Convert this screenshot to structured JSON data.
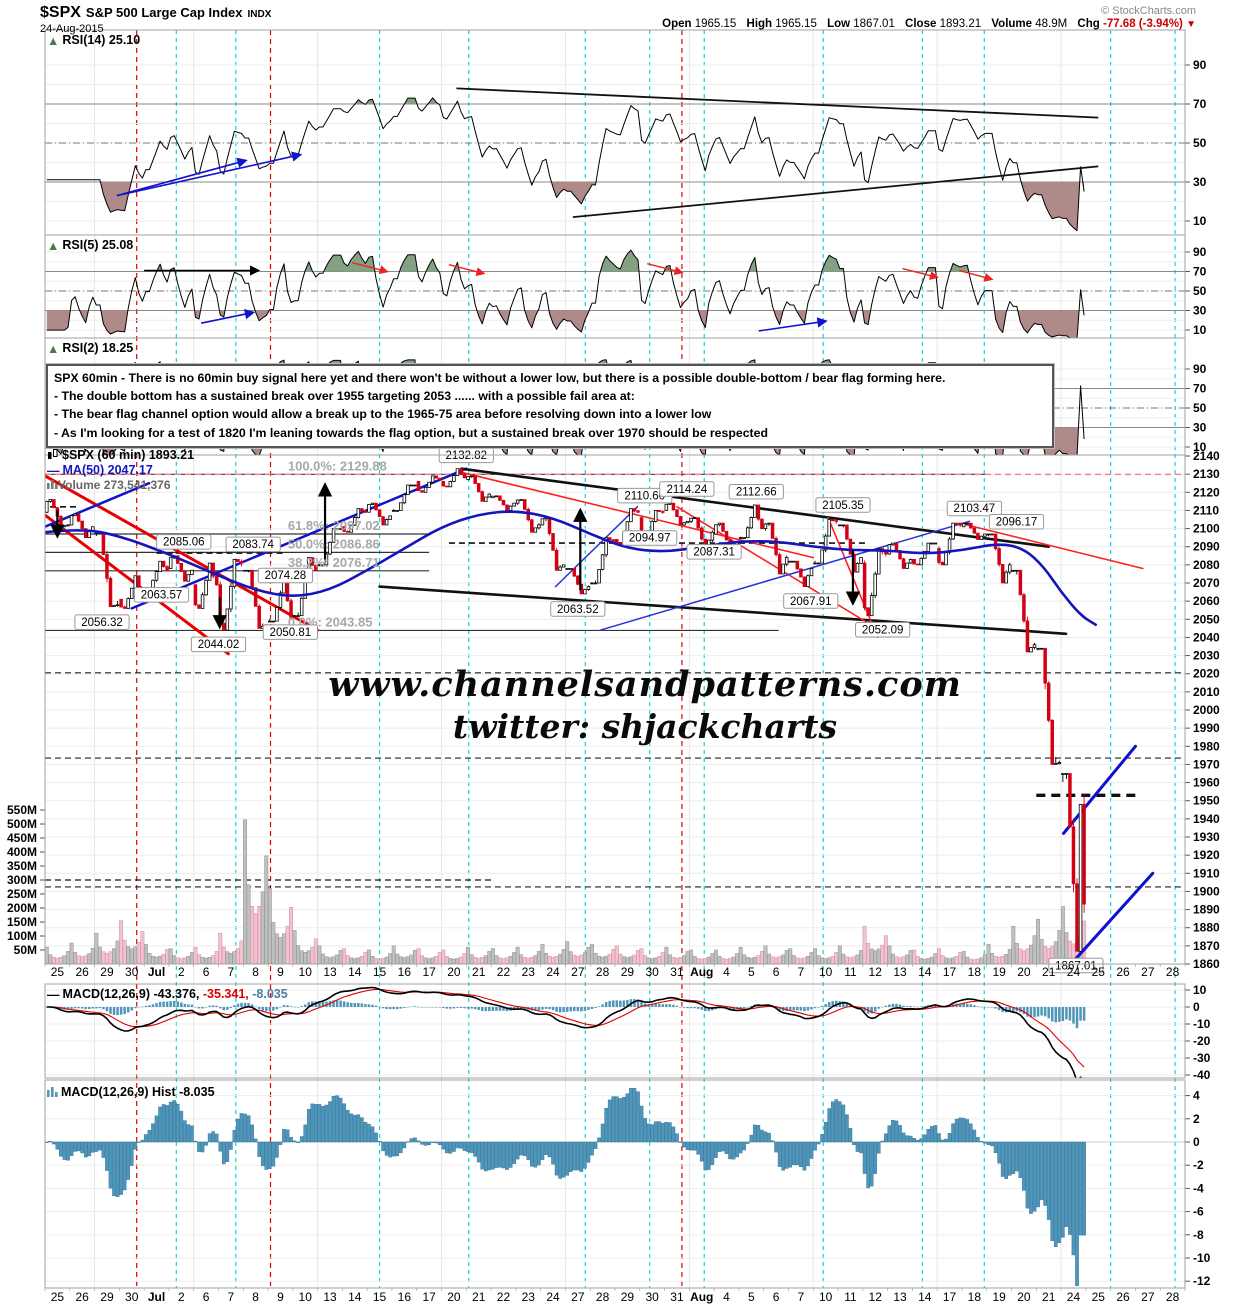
{
  "header": {
    "symbol": "$SPX",
    "name": "S&P 500 Large Cap Index",
    "exchange": "INDX",
    "date": "24-Aug-2015",
    "copyright": "© StockCharts.com",
    "quote": {
      "open_label": "Open",
      "open": "1965.15",
      "high_label": "High",
      "high": "1965.15",
      "low_label": "Low",
      "low": "1867.01",
      "close_label": "Close",
      "close": "1893.21",
      "volume_label": "Volume",
      "volume": "48.9M",
      "chg_label": "Chg",
      "chg": "-77.68 (-3.94%)",
      "chg_arrow": "▼"
    }
  },
  "legends": {
    "rsi14": "RSI(14) 25.10",
    "rsi5": "RSI(5) 25.08",
    "rsi2": "RSI(2) 18.25",
    "spx": "$SPX (60 min) 1893.21",
    "ma50": "MA(50) 2047.17",
    "volume": "Volume 273,541,376",
    "macd_name": "MACD(12,26,9)",
    "macd_v1": "-43.376,",
    "macd_v2": "-35.341,",
    "macd_v3": "-8.035",
    "hist": "MACD(12,26,9) Hist -8.035"
  },
  "annotation_box": {
    "lines": [
      "SPX 60min - There is no 60min buy signal here yet and there won't be without a lower low, but there is a possible double-bottom / bear flag forming here.",
      "- The double bottom has a sustained break over 1955 targeting 2053 ...... with a possible fail area at:",
      "- The bear flag channel option would allow a break up to the 1965-75 area before resolving down into a lower low",
      "- As I'm looking for a test of 1820 I'm leaning towards the flag option, but a sustained break over 1970 should be respected"
    ]
  },
  "watermark": {
    "line1": "www.channelsandpatterns.com",
    "line2": "twitter: shjackcharts"
  },
  "chart_data": {
    "type": "candlestick",
    "title": "$SPX 60 min with RSI(14), RSI(5), RSI(2), Volume, MACD(12,26,9)",
    "dates": [
      "25",
      "26",
      "29",
      "30",
      "Jul",
      "2",
      "6",
      "7",
      "8",
      "9",
      "10",
      "13",
      "14",
      "15",
      "16",
      "17",
      "20",
      "21",
      "22",
      "23",
      "24",
      "27",
      "28",
      "29",
      "30",
      "31",
      "Aug",
      "4",
      "5",
      "6",
      "7",
      "10",
      "11",
      "12",
      "13",
      "14",
      "17",
      "18",
      "19",
      "20",
      "21",
      "24",
      "25",
      "26",
      "27",
      "28"
    ],
    "bold_dates": [
      "Jul",
      "Aug"
    ],
    "price_axis": {
      "min": 1860,
      "max": 2140,
      "step": 10
    },
    "rsi_axis": [
      90,
      70,
      50,
      30,
      10
    ],
    "macd_axis": [
      10,
      0,
      -10,
      -20,
      -30,
      -40
    ],
    "hist_axis": [
      4,
      2,
      0,
      -2,
      -4,
      -6,
      -8,
      -10,
      -12
    ],
    "volume_axis": [
      "550M",
      "500M",
      "450M",
      "400M",
      "350M",
      "300M",
      "250M",
      "200M",
      "150M",
      "100M",
      "50M"
    ],
    "daily_ohlcv": [
      [
        2109,
        2116,
        2101,
        2102,
        60
      ],
      [
        2102,
        2108,
        2095,
        2101,
        75
      ],
      [
        2098,
        2098,
        2057,
        2058,
        110
      ],
      [
        2061,
        2074,
        2056,
        2063,
        155
      ],
      [
        2067,
        2082,
        2067,
        2077,
        70
      ],
      [
        2078,
        2085,
        2071,
        2077,
        55
      ],
      [
        2069,
        2081,
        2056,
        2069,
        60
      ],
      [
        2069,
        2083,
        2044,
        2081,
        110
      ],
      [
        2077,
        2077,
        2045,
        2047,
        515
      ],
      [
        2049,
        2074,
        2049,
        2051,
        270
      ],
      [
        2052,
        2084,
        2052,
        2077,
        120
      ],
      [
        2080,
        2100,
        2080,
        2100,
        65
      ],
      [
        2101,
        2111,
        2098,
        2109,
        55
      ],
      [
        2109,
        2114,
        2102,
        2107,
        50
      ],
      [
        2110,
        2124,
        2110,
        2124,
        65
      ],
      [
        2126,
        2129,
        2120,
        2127,
        55
      ],
      [
        2126,
        2133,
        2123,
        2128,
        50
      ],
      [
        2127,
        2129,
        2115,
        2119,
        60
      ],
      [
        2117,
        2118,
        2110,
        2114,
        55
      ],
      [
        2114,
        2116,
        2098,
        2102,
        60
      ],
      [
        2102,
        2106,
        2077,
        2080,
        70
      ],
      [
        2078,
        2078,
        2064,
        2068,
        80
      ],
      [
        2070,
        2095,
        2070,
        2093,
        70
      ],
      [
        2094,
        2111,
        2092,
        2109,
        65
      ],
      [
        2106,
        2110,
        2094,
        2109,
        55
      ],
      [
        2110,
        2114,
        2102,
        2104,
        60
      ],
      [
        2104,
        2106,
        2087,
        2098,
        50
      ],
      [
        2097,
        2103,
        2088,
        2093,
        50
      ],
      [
        2095,
        2113,
        2095,
        2100,
        60
      ],
      [
        2100,
        2103,
        2075,
        2084,
        65
      ],
      [
        2082,
        2082,
        2068,
        2078,
        55
      ],
      [
        2081,
        2105,
        2081,
        2104,
        55
      ],
      [
        2102,
        2102,
        2076,
        2084,
        65
      ],
      [
        2081,
        2089,
        2052,
        2086,
        135
      ],
      [
        2086,
        2092,
        2078,
        2083,
        65
      ],
      [
        2083,
        2092,
        2080,
        2092,
        50
      ],
      [
        2089,
        2103,
        2080,
        2102,
        55
      ],
      [
        2101,
        2103,
        2094,
        2097,
        45
      ],
      [
        2097,
        2097,
        2070,
        2080,
        70
      ],
      [
        2077,
        2077,
        2032,
        2036,
        135
      ],
      [
        2034,
        2034,
        1970,
        1971,
        160
      ],
      [
        1965,
        1965,
        1867,
        1893,
        205,
        1948
      ]
    ],
    "ma50": [
      [
        0,
        2098
      ],
      [
        1.5,
        2100
      ],
      [
        3,
        2096
      ],
      [
        5,
        2086
      ],
      [
        7,
        2074
      ],
      [
        8.5,
        2066
      ],
      [
        10,
        2062
      ],
      [
        11.5,
        2066
      ],
      [
        13,
        2077
      ],
      [
        14.5,
        2089
      ],
      [
        16,
        2101
      ],
      [
        17.5,
        2108
      ],
      [
        19,
        2110
      ],
      [
        20.5,
        2106
      ],
      [
        22,
        2097
      ],
      [
        23.5,
        2089
      ],
      [
        25,
        2087
      ],
      [
        26.5,
        2090
      ],
      [
        28,
        2093
      ],
      [
        29.5,
        2093
      ],
      [
        31,
        2090
      ],
      [
        32.5,
        2088
      ],
      [
        34,
        2088
      ],
      [
        35.5,
        2086
      ],
      [
        37,
        2088
      ],
      [
        38.5,
        2092
      ],
      [
        39.5,
        2089
      ],
      [
        40.3,
        2079
      ],
      [
        41,
        2065
      ],
      [
        41.8,
        2052
      ],
      [
        42.4,
        2047
      ]
    ],
    "indicator_current": {
      "rsi14": 25.1,
      "rsi5": 25.08,
      "rsi2": 18.25,
      "macd": -43.376,
      "signal": -35.341,
      "hist": -8.035,
      "ma50": 2047.17,
      "last": 1893.21
    },
    "indicators": {
      "rsi_periods": [
        14,
        5,
        2
      ],
      "macd_params": [
        12,
        26,
        9
      ]
    },
    "fib_labels": [
      {
        "t": "100.0%: 2129.88",
        "p": 2129.88
      },
      {
        "t": "61.8%: 2097.02",
        "p": 2097.02
      },
      {
        "t": "50.0%: 2086.86",
        "p": 2086.86
      },
      {
        "t": "38.2%: 2076.71",
        "p": 2076.71
      },
      {
        "t": "0.0%: 2043.85",
        "p": 2043.85
      }
    ],
    "fib_label_day": 9.8,
    "price_labels": [
      {
        "text": "2056.32",
        "day": 2.3,
        "price": 2056.3,
        "pos": "below"
      },
      {
        "text": "2063.57",
        "day": 4.7,
        "price": 2063.6,
        "pos": "mid"
      },
      {
        "text": "2085.06",
        "day": 5.6,
        "price": 2085.1,
        "pos": "above"
      },
      {
        "text": "2044.02",
        "day": 7.0,
        "price": 2044.0,
        "pos": "below"
      },
      {
        "text": "2083.74",
        "day": 8.4,
        "price": 2083.7,
        "pos": "above"
      },
      {
        "text": "2074.28",
        "day": 9.7,
        "price": 2074.3,
        "pos": "mid"
      },
      {
        "text": "2050.81",
        "day": 9.9,
        "price": 2050.8,
        "pos": "below"
      },
      {
        "text": "2132.82",
        "day": 17.0,
        "price": 2132.8,
        "pos": "above"
      },
      {
        "text": "2063.52",
        "day": 21.5,
        "price": 2063.5,
        "pos": "below"
      },
      {
        "text": "2110.60",
        "day": 24.2,
        "price": 2110.6,
        "pos": "above"
      },
      {
        "text": "2094.97",
        "day": 24.4,
        "price": 2094.97,
        "pos": "mid"
      },
      {
        "text": "2114.24",
        "day": 25.9,
        "price": 2114.2,
        "pos": "above"
      },
      {
        "text": "2087.31",
        "day": 27.0,
        "price": 2087.3,
        "pos": "mid"
      },
      {
        "text": "2112.66",
        "day": 28.7,
        "price": 2112.7,
        "pos": "above"
      },
      {
        "text": "2067.91",
        "day": 30.9,
        "price": 2067.9,
        "pos": "below"
      },
      {
        "text": "2105.35",
        "day": 32.2,
        "price": 2105.4,
        "pos": "above"
      },
      {
        "text": "2052.09",
        "day": 33.8,
        "price": 2052.1,
        "pos": "below"
      },
      {
        "text": "2103.47",
        "day": 37.5,
        "price": 2103.5,
        "pos": "above"
      },
      {
        "text": "2096.17",
        "day": 39.2,
        "price": 2096.2,
        "pos": "above"
      },
      {
        "text": "1867.01",
        "day": 41.6,
        "price": 1867.0,
        "pos": "below"
      }
    ],
    "hlines": [
      {
        "p": 2129.88,
        "d1": 0,
        "d2": 38,
        "style": "solid",
        "c": "#555",
        "w": 1.3
      },
      {
        "p": 2129.88,
        "d1": 0,
        "d2": 46,
        "style": "dash",
        "c": "#f08a8a",
        "w": 1.5
      },
      {
        "p": 2097.02,
        "d1": 0,
        "d2": 15.5,
        "style": "solid",
        "c": "#333",
        "w": 1.2
      },
      {
        "p": 2086.86,
        "d1": 0,
        "d2": 15.5,
        "style": "solid",
        "c": "#333",
        "w": 1.2
      },
      {
        "p": 2076.71,
        "d1": 0,
        "d2": 15.5,
        "style": "solid",
        "c": "#333",
        "w": 1.2
      },
      {
        "p": 2043.85,
        "d1": 0,
        "d2": 29.6,
        "style": "solid",
        "c": "#333",
        "w": 1.2
      },
      {
        "p": 2112.0,
        "d1": -0.2,
        "d2": 1.4,
        "style": "dash",
        "c": "#111",
        "w": 1.6
      },
      {
        "p": 2086.5,
        "d1": 4.5,
        "d2": 9.6,
        "style": "dash",
        "c": "#111",
        "w": 1.6
      },
      {
        "p": 2092.0,
        "d1": 16.3,
        "d2": 33.2,
        "style": "dash",
        "c": "#111",
        "w": 1.6
      },
      {
        "p": 1953.0,
        "d1": 40.0,
        "d2": 44.0,
        "style": "dash-thick",
        "c": "#111",
        "w": 3.4
      },
      {
        "p": 2020.5,
        "d1": 0,
        "d2": 46,
        "style": "dash",
        "c": "#222",
        "w": 1.1
      },
      {
        "p": 1973.5,
        "d1": 0,
        "d2": 46,
        "style": "dash",
        "c": "#222",
        "w": 1.1
      },
      {
        "p": 1902.5,
        "d1": 0,
        "d2": 46,
        "style": "dash",
        "c": "#222",
        "w": 1.1
      }
    ],
    "volume_hline": {
      "v": 300,
      "d1": 0,
      "d2": 18
    },
    "trend_lines": [
      {
        "d1": -0.9,
        "p1": 2136,
        "d2": 11.0,
        "p2": 2044,
        "c": "#e80000",
        "w": 3
      },
      {
        "d1": -1.8,
        "p1": 2126,
        "d2": 7.4,
        "p2": 2031,
        "c": "#e80000",
        "w": 3
      },
      {
        "d1": 0,
        "p1": 2101,
        "d2": 4.2,
        "p2": 2125,
        "c": "#1212cc",
        "w": 2.5
      },
      {
        "d1": 3.5,
        "p1": 2056,
        "d2": 17.0,
        "p2": 2133,
        "c": "#1212cc",
        "w": 2.5
      },
      {
        "d1": 16.8,
        "p1": 2133,
        "d2": 40.5,
        "p2": 2090,
        "c": "#111111",
        "w": 2.6
      },
      {
        "d1": 13.5,
        "p1": 2068,
        "d2": 41.2,
        "p2": 2042,
        "c": "#111111",
        "w": 2.6
      },
      {
        "d1": 16.8,
        "p1": 2131,
        "d2": 31.0,
        "p2": 2084,
        "c": "#ff2222",
        "w": 1.6
      },
      {
        "d1": 25.5,
        "p1": 2112,
        "d2": 33.2,
        "p2": 2048,
        "c": "#ff2222",
        "w": 1.6
      },
      {
        "d1": 31.6,
        "p1": 2106,
        "d2": 33.6,
        "p2": 2040,
        "c": "#ff2222",
        "w": 1.6
      },
      {
        "d1": 36.9,
        "p1": 2103,
        "d2": 44.3,
        "p2": 2078,
        "c": "#ff2222",
        "w": 1.6
      },
      {
        "d1": 20.6,
        "p1": 2068,
        "d2": 23.9,
        "p2": 2112,
        "c": "#2233dd",
        "w": 1.5
      },
      {
        "d1": 22.4,
        "p1": 2044,
        "d2": 37.3,
        "p2": 2104,
        "c": "#2233dd",
        "w": 1.5
      },
      {
        "d1": 41.1,
        "p1": 1932,
        "d2": 44.0,
        "p2": 1980,
        "c": "#0f0fd0",
        "w": 3
      },
      {
        "d1": 41.6,
        "p1": 1863,
        "d2": 44.7,
        "p2": 1910,
        "c": "#0f0fd0",
        "w": 3
      }
    ],
    "arrows": {
      "main_black": [
        [
          0.5,
          2110,
          0.5,
          2096
        ],
        [
          7.05,
          2062,
          7.05,
          2046
        ],
        [
          11.3,
          2083,
          11.3,
          2124
        ],
        [
          21.6,
          2066,
          21.6,
          2110
        ],
        [
          32.6,
          2088,
          32.6,
          2059
        ]
      ],
      "rsi14_blue": [
        [
          2.9,
          23,
          8.1,
          41
        ],
        [
          2.9,
          23,
          10.3,
          44
        ]
      ],
      "rsi14_black_lines": [
        [
          16.6,
          78,
          42.5,
          63
        ],
        [
          21.3,
          12,
          42.5,
          38
        ]
      ],
      "rsi5_black": [
        [
          4.0,
          71,
          8.6,
          71
        ]
      ],
      "rsi5_blue": [
        [
          6.3,
          17,
          8.4,
          28
        ],
        [
          28.8,
          9,
          31.5,
          19
        ]
      ],
      "rsi5_red": [
        [
          12.4,
          79,
          13.8,
          70
        ],
        [
          16.3,
          77,
          17.7,
          68
        ],
        [
          24.3,
          78,
          25.7,
          69
        ],
        [
          34.6,
          73,
          36.0,
          64
        ],
        [
          36.9,
          71,
          38.2,
          62
        ]
      ]
    },
    "vlines": {
      "cyan_days": [
        5.3,
        7.7,
        13.5,
        17.1,
        21.8,
        24.4,
        26.6,
        31.4,
        35.4,
        37.9,
        43.0,
        45.6
      ],
      "red_days": [
        3.7,
        9.1,
        25.7
      ]
    },
    "monday_day_indices": [
      2,
      6,
      11,
      16,
      21,
      26,
      31,
      36,
      41
    ],
    "colors": {
      "candle_down": "#d40014",
      "candle_up_fill": "#ffffff",
      "candle_up_stroke": "#000000",
      "vol_up": "#c0c0c0",
      "vol_up_stroke": "#8f8f8f",
      "vol_down": "#f2c2ce",
      "vol_down_stroke": "#cf8fa0",
      "ma50": "#1515bb",
      "macd_line": "#000000",
      "signal_line": "#dd0000",
      "hist_bar": "#4f96ba",
      "hist_stroke": "#2e6f93",
      "rsi_over_fill": "#84a184",
      "rsi_under_fill": "#b08989",
      "cyan_vline": "#00d8d8",
      "red_vline": "#e00000",
      "grid": "#ebebeb",
      "panel_border": "#a0a0a0",
      "fib_text": "#a8a8a8"
    }
  }
}
